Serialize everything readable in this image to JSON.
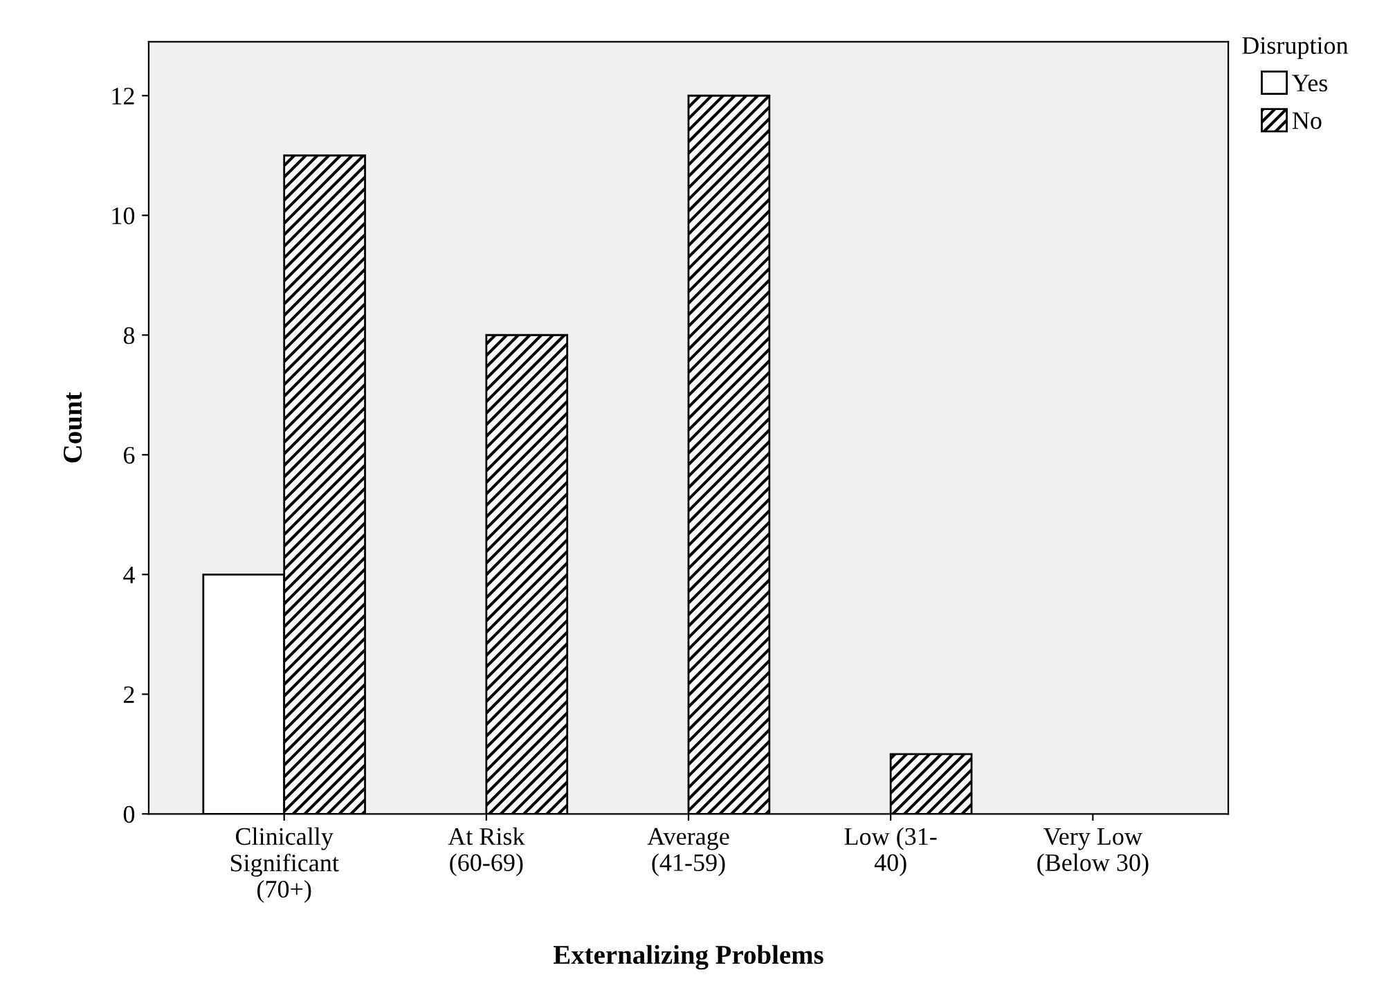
{
  "chart_data": {
    "type": "bar",
    "xlabel": "Externalizing Problems",
    "ylabel": "Count",
    "legend_title": "Disruption",
    "categories": [
      "Clinically\nSignificant\n(70+)",
      "At Risk\n(60-69)",
      "Average\n(41-59)",
      "Low (31-\n40)",
      "Very Low\n(Below 30)"
    ],
    "series": [
      {
        "name": "Yes",
        "color": "#ffffff",
        "values": [
          4,
          null,
          null,
          null,
          null
        ]
      },
      {
        "name": "No",
        "color": "#000000",
        "values": [
          11,
          8,
          12,
          1,
          null
        ]
      }
    ],
    "ylim": [
      0,
      12.9
    ],
    "yticks": [
      0,
      2,
      4,
      6,
      8,
      10,
      12
    ],
    "grid": false,
    "legend": "top right"
  }
}
